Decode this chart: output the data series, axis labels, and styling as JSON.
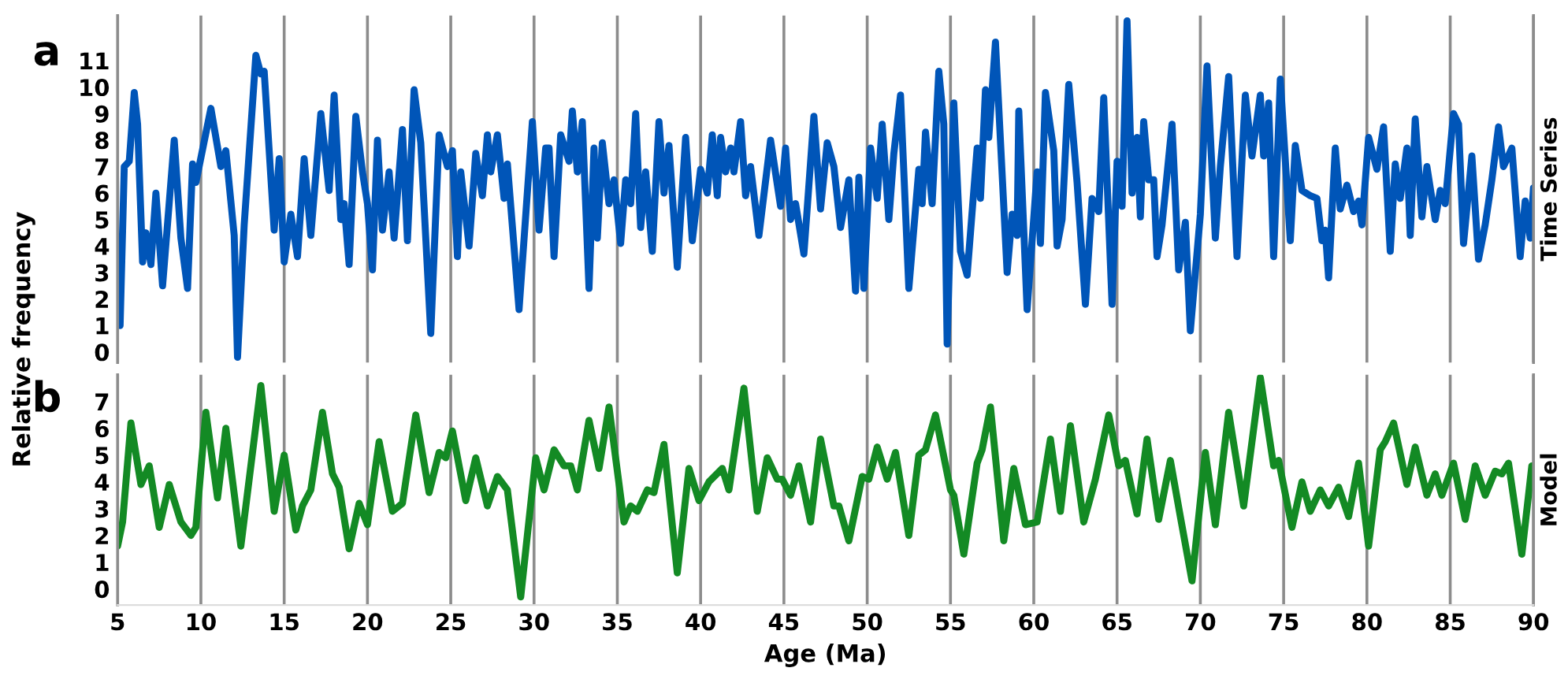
{
  "chart_data": [
    {
      "type": "line",
      "annotations": [
        "a"
      ],
      "y2label": "Time Series",
      "grid": "x",
      "tick_labels": "y",
      "marker": "none",
      "line_style": "solid",
      "xlim": [
        5,
        90
      ],
      "xticks": [
        5,
        10,
        15,
        20,
        25,
        30,
        35,
        40,
        45,
        50,
        55,
        60,
        65,
        70,
        75,
        80,
        85,
        90
      ],
      "ylim": [
        -0.4,
        12.7
      ],
      "yticks": [
        0,
        1,
        2,
        3,
        4,
        5,
        6,
        7,
        8,
        9,
        10,
        11
      ],
      "series": [
        {
          "color": "#0055b8",
          "x": [
            5.0,
            5.15,
            5.4,
            5.7,
            6.0,
            6.2,
            6.5,
            6.7,
            7.0,
            7.3,
            7.7,
            8.4,
            8.8,
            9.2,
            9.5,
            9.7,
            10.6,
            11.2,
            11.5,
            12.0,
            12.2,
            12.6,
            13.3,
            13.6,
            13.8,
            14.4,
            14.7,
            15.0,
            15.4,
            15.8,
            16.2,
            16.6,
            17.2,
            17.7,
            18.0,
            18.4,
            18.6,
            18.9,
            19.3,
            19.7,
            20.0,
            20.3,
            20.6,
            20.9,
            21.3,
            21.6,
            22.1,
            22.4,
            22.8,
            23.2,
            23.8,
            24.3,
            24.8,
            25.1,
            25.4,
            25.6,
            26.1,
            26.5,
            26.9,
            27.2,
            27.4,
            27.8,
            28.2,
            28.4,
            29.1,
            29.9,
            30.3,
            30.7,
            30.9,
            31.2,
            31.6,
            32.1,
            32.3,
            32.6,
            32.9,
            33.3,
            33.6,
            33.8,
            34.1,
            34.5,
            34.8,
            35.2,
            35.5,
            35.8,
            36.1,
            36.4,
            36.7,
            37.1,
            37.5,
            37.8,
            38.1,
            38.6,
            39.1,
            39.5,
            40.0,
            40.4,
            40.7,
            41.0,
            41.2,
            41.5,
            41.8,
            42.0,
            42.4,
            42.7,
            43.0,
            43.5,
            44.2,
            44.8,
            45.1,
            45.4,
            45.7,
            46.2,
            46.8,
            47.2,
            47.6,
            48.0,
            48.4,
            48.9,
            49.3,
            49.5,
            49.8,
            50.2,
            50.6,
            50.9,
            51.3,
            51.6,
            52.0,
            52.5,
            53.1,
            53.3,
            53.5,
            53.9,
            54.3,
            54.6,
            54.8,
            55.2,
            55.6,
            56.0,
            56.6,
            56.8,
            57.1,
            57.3,
            57.7,
            58.4,
            58.7,
            59.0,
            59.1,
            59.6,
            60.2,
            60.4,
            60.7,
            61.2,
            61.4,
            61.7,
            62.1,
            62.6,
            63.1,
            63.5,
            63.9,
            64.2,
            64.7,
            65.0,
            65.3,
            65.6,
            65.9,
            66.2,
            66.4,
            66.6,
            66.9,
            67.2,
            67.4,
            67.7,
            68.3,
            68.7,
            69.1,
            69.4,
            70.0,
            70.4,
            70.9,
            71.2,
            71.7,
            72.2,
            72.7,
            73.1,
            73.6,
            73.8,
            74.1,
            74.4,
            74.8,
            75.4,
            75.7,
            76.1,
            76.6,
            77.0,
            77.3,
            77.5,
            77.7,
            78.1,
            78.4,
            78.8,
            79.2,
            79.5,
            79.7,
            80.1,
            80.6,
            81.0,
            81.4,
            81.7,
            82.0,
            82.4,
            82.6,
            82.9,
            83.3,
            83.6,
            84.1,
            84.4,
            84.7,
            85.2,
            85.5,
            85.8,
            86.3,
            86.7,
            87.1,
            87.5,
            87.9,
            88.2,
            88.7,
            89.2,
            89.5,
            89.8,
            90.0
          ],
          "values": [
            1.9,
            1.0,
            7.0,
            7.2,
            9.8,
            8.6,
            3.4,
            4.5,
            3.3,
            6.0,
            2.5,
            8.0,
            4.3,
            2.4,
            7.1,
            6.4,
            9.2,
            7.0,
            7.6,
            4.4,
            -0.2,
            4.8,
            11.2,
            10.5,
            10.6,
            4.6,
            7.3,
            3.4,
            5.2,
            3.6,
            7.3,
            4.4,
            9.0,
            6.1,
            9.7,
            5.0,
            5.6,
            3.3,
            8.9,
            6.8,
            5.6,
            3.1,
            8.0,
            4.6,
            6.8,
            4.3,
            8.4,
            4.2,
            9.9,
            7.9,
            0.7,
            8.2,
            7.0,
            7.6,
            3.6,
            6.8,
            4.0,
            7.5,
            5.9,
            8.2,
            6.8,
            8.2,
            5.8,
            7.1,
            1.6,
            8.7,
            4.6,
            7.7,
            7.7,
            3.6,
            8.2,
            7.2,
            9.1,
            6.8,
            8.7,
            2.4,
            7.7,
            4.3,
            7.9,
            5.6,
            6.5,
            4.1,
            6.5,
            5.6,
            9.0,
            4.7,
            6.8,
            3.8,
            8.7,
            6.0,
            7.8,
            3.2,
            8.1,
            4.2,
            6.9,
            6.0,
            8.2,
            5.9,
            8.1,
            6.8,
            7.7,
            6.8,
            8.7,
            5.9,
            7.0,
            4.4,
            8.0,
            5.5,
            7.7,
            5.0,
            5.6,
            3.7,
            8.9,
            5.4,
            7.9,
            7.0,
            4.7,
            6.5,
            2.3,
            6.6,
            2.4,
            7.7,
            5.8,
            8.6,
            5.0,
            7.5,
            9.7,
            2.4,
            6.9,
            5.6,
            8.3,
            5.6,
            10.6,
            8.6,
            0.3,
            9.4,
            3.8,
            2.9,
            7.7,
            5.8,
            9.9,
            8.1,
            11.7,
            3.0,
            5.2,
            4.4,
            9.1,
            1.6,
            6.8,
            4.1,
            9.8,
            7.6,
            4.0,
            5.0,
            10.1,
            6.4,
            1.8,
            5.8,
            5.3,
            9.6,
            1.8,
            7.2,
            5.5,
            12.5,
            6.0,
            8.1,
            5.1,
            8.7,
            6.5,
            6.5,
            3.6,
            4.8,
            8.6,
            3.1,
            4.9,
            0.8,
            5.2,
            10.8,
            4.3,
            7.0,
            10.4,
            3.6,
            9.7,
            7.4,
            9.7,
            7.4,
            9.4,
            3.6,
            10.3,
            4.2,
            7.8,
            6.1,
            5.9,
            5.8,
            4.2,
            4.6,
            2.8,
            7.7,
            5.4,
            6.3,
            5.3,
            5.7,
            4.8,
            8.1,
            6.9,
            8.5,
            3.8,
            7.1,
            5.8,
            7.7,
            4.4,
            8.8,
            5.1,
            7.0,
            5.0,
            6.1,
            5.6,
            9.0,
            8.6,
            4.1,
            7.4,
            3.5,
            4.8,
            6.5,
            8.5,
            7.0,
            7.7,
            3.6,
            5.7,
            4.3,
            6.2
          ]
        }
      ]
    },
    {
      "type": "line",
      "annotations": [
        "b"
      ],
      "y2label": "Model",
      "xlabel": "Age (Ma)",
      "ylabel": "Relative frequency",
      "grid": "x",
      "marker": "none",
      "line_style": "solid",
      "xlim": [
        5,
        90
      ],
      "xticks": [
        5,
        10,
        15,
        20,
        25,
        30,
        35,
        40,
        45,
        50,
        55,
        60,
        65,
        70,
        75,
        80,
        85,
        90
      ],
      "ylim": [
        -0.6,
        8.0
      ],
      "yticks": [
        0,
        1,
        2,
        3,
        4,
        5,
        6,
        7
      ],
      "series": [
        {
          "color": "#138a24",
          "x": [
            5.0,
            5.3,
            5.8,
            6.4,
            6.9,
            7.5,
            8.1,
            8.8,
            9.4,
            9.7,
            10.3,
            11.0,
            11.5,
            12.4,
            13.6,
            14.4,
            15.0,
            15.7,
            16.1,
            16.6,
            17.3,
            17.9,
            18.3,
            18.9,
            19.5,
            20.0,
            20.7,
            21.5,
            22.1,
            22.9,
            23.7,
            24.3,
            24.7,
            25.1,
            25.9,
            26.5,
            27.2,
            27.8,
            28.4,
            29.2,
            30.1,
            30.6,
            31.2,
            31.8,
            32.2,
            32.6,
            33.3,
            33.9,
            34.5,
            35.4,
            35.8,
            36.2,
            36.8,
            37.2,
            37.8,
            38.6,
            39.3,
            39.9,
            40.5,
            41.3,
            41.7,
            42.6,
            43.4,
            44.0,
            44.6,
            44.9,
            45.4,
            45.9,
            46.6,
            47.2,
            48.0,
            48.3,
            48.9,
            49.7,
            50.1,
            50.6,
            51.2,
            51.7,
            52.5,
            53.1,
            53.5,
            54.1,
            55.0,
            55.2,
            55.8,
            56.6,
            56.9,
            57.4,
            58.2,
            58.8,
            59.5,
            60.2,
            61.0,
            61.6,
            62.2,
            63.0,
            63.7,
            64.5,
            65.1,
            65.5,
            66.2,
            66.8,
            67.5,
            68.2,
            68.8,
            69.5,
            70.3,
            70.9,
            71.7,
            72.6,
            73.6,
            74.4,
            74.7,
            75.5,
            76.1,
            76.6,
            77.2,
            77.7,
            78.3,
            78.9,
            79.5,
            80.1,
            80.8,
            81.1,
            81.6,
            82.4,
            82.9,
            83.6,
            84.1,
            84.5,
            85.2,
            85.9,
            86.5,
            87.1,
            87.7,
            88.1,
            88.5,
            89.3,
            89.9
          ],
          "values": [
            1.6,
            2.5,
            6.2,
            3.9,
            4.6,
            2.3,
            3.9,
            2.5,
            2.0,
            2.3,
            6.6,
            3.4,
            6.0,
            1.6,
            7.6,
            2.9,
            5.0,
            2.2,
            3.1,
            3.7,
            6.6,
            4.3,
            3.8,
            1.5,
            3.2,
            2.4,
            5.5,
            2.9,
            3.2,
            6.5,
            3.6,
            5.1,
            4.9,
            5.9,
            3.3,
            4.9,
            3.1,
            4.2,
            3.7,
            -0.3,
            4.9,
            3.7,
            5.2,
            4.6,
            4.6,
            3.7,
            6.3,
            4.5,
            6.8,
            2.5,
            3.1,
            2.9,
            3.7,
            3.6,
            5.4,
            0.6,
            4.5,
            3.3,
            4.0,
            4.5,
            3.7,
            7.5,
            2.9,
            4.9,
            4.1,
            4.1,
            3.5,
            4.6,
            2.5,
            5.6,
            3.1,
            3.1,
            1.8,
            4.2,
            4.1,
            5.3,
            4.1,
            5.1,
            2.0,
            5.0,
            5.2,
            6.5,
            3.7,
            3.5,
            1.3,
            4.7,
            5.2,
            6.8,
            1.8,
            4.5,
            2.4,
            2.5,
            5.6,
            2.9,
            6.1,
            2.5,
            4.1,
            6.5,
            4.6,
            4.8,
            2.8,
            5.6,
            2.6,
            4.8,
            2.7,
            0.3,
            5.1,
            2.4,
            6.6,
            3.1,
            7.9,
            4.6,
            4.8,
            2.3,
            4.0,
            2.9,
            3.7,
            3.1,
            3.8,
            2.7,
            4.7,
            1.6,
            5.2,
            5.5,
            6.2,
            3.9,
            5.3,
            3.5,
            4.3,
            3.5,
            4.7,
            2.6,
            4.6,
            3.5,
            4.4,
            4.3,
            4.7,
            1.3,
            4.6
          ]
        }
      ]
    }
  ]
}
